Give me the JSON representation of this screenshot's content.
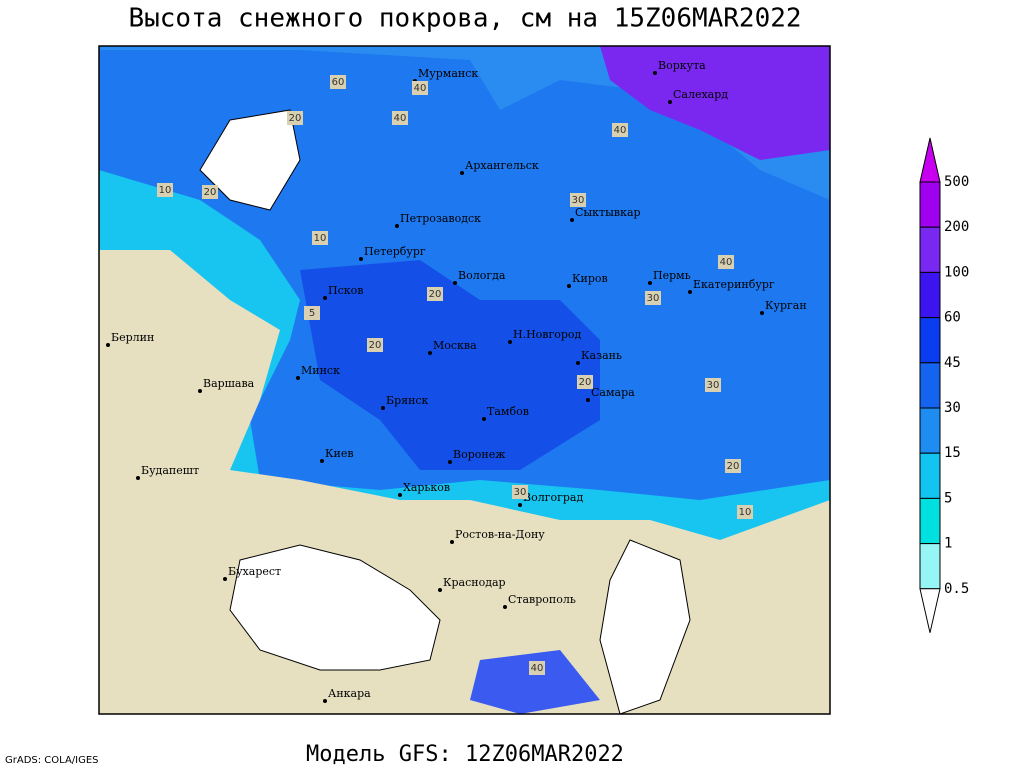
{
  "title": "Высота снежного покрова, см на 15Z06MAR2022",
  "footer": "Модель GFS: 12Z06MAR2022",
  "credit": "GrADS: COLA/IGES",
  "legend": {
    "labels": [
      "500",
      "200",
      "100",
      "60",
      "45",
      "30",
      "15",
      "5",
      "1",
      "0.5"
    ],
    "colors": [
      "#c800f0",
      "#a000f0",
      "#7828f0",
      "#3c14f0",
      "#0a3cf0",
      "#1464f0",
      "#1e8cf0",
      "#14c4f0",
      "#00e0e0",
      "#96f5f5",
      "#ffffff"
    ]
  },
  "cities": [
    "Мурманск",
    "Воркута",
    "Салехард",
    "Архангельск",
    "Сыктывкар",
    "Петрозаводск",
    "Петербург",
    "Вологда",
    "Киров",
    "Пермь",
    "Екатеринбург",
    "Курган",
    "Псков",
    "Берлин",
    "Москва",
    "Н.Новгород",
    "Казань",
    "Минск",
    "Варшава",
    "Брянск",
    "Самара",
    "Тамбов",
    "Киев",
    "Воронеж",
    "Будапешт",
    "Харьков",
    "Волгоград",
    "Ростов-на-Дону",
    "Бухарест",
    "Краснодар",
    "Ставрополь",
    "Анкара"
  ],
  "contour_labels": [
    "60",
    "40",
    "20",
    "10",
    "20",
    "40",
    "30",
    "40",
    "20",
    "30",
    "40",
    "30",
    "20",
    "20",
    "10",
    "5",
    "20",
    "30",
    "10",
    "40"
  ]
}
